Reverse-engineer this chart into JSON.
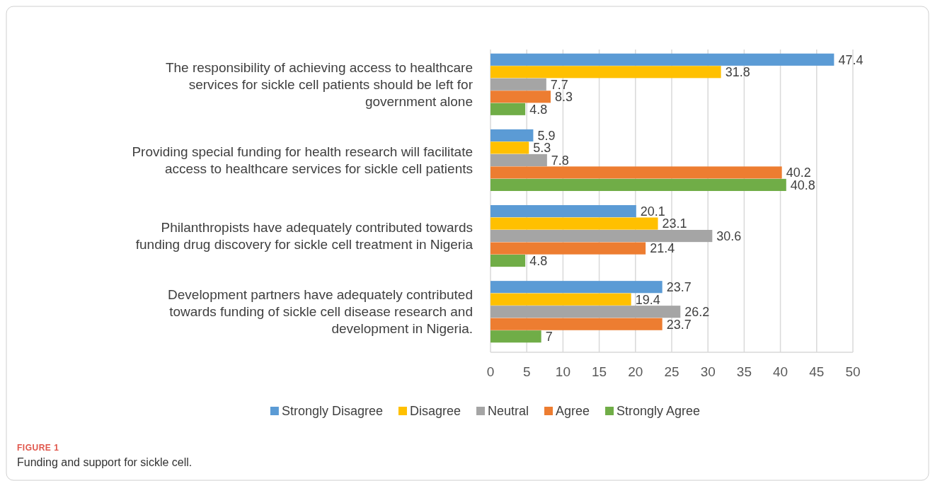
{
  "chart_data": {
    "type": "bar",
    "orientation": "horizontal",
    "categories": [
      "The responsibility of achieving access to healthcare services for sickle cell patients should be left for government alone",
      "Providing special funding for health research will facilitate access to healthcare services for sickle cell patients",
      "Philanthropists have adequately contributed towards funding drug discovery for sickle cell treatment in Nigeria",
      "Development partners have adequately contributed towards funding of sickle cell disease research and development in Nigeria."
    ],
    "series": [
      {
        "name": "Strongly Disagree",
        "color": "#5b9bd5",
        "values": [
          47.4,
          5.9,
          20.1,
          23.7
        ]
      },
      {
        "name": "Disagree",
        "color": "#ffc000",
        "values": [
          31.8,
          5.3,
          23.1,
          19.4
        ]
      },
      {
        "name": "Neutral",
        "color": "#a5a5a5",
        "values": [
          7.7,
          7.8,
          30.6,
          26.2
        ]
      },
      {
        "name": "Agree",
        "color": "#ed7d31",
        "values": [
          8.3,
          40.2,
          21.4,
          23.7
        ]
      },
      {
        "name": "Strongly Agree",
        "color": "#70ad47",
        "values": [
          4.8,
          40.8,
          4.8,
          7
        ]
      }
    ],
    "xlim": [
      0,
      50
    ],
    "xticks": [
      0,
      5,
      10,
      15,
      20,
      25,
      30,
      35,
      40,
      45,
      50
    ],
    "grid": "x",
    "legend": "bottom",
    "data_labels": true,
    "annotations": [
      "FIGURE 1",
      "Funding and support for sickle cell."
    ]
  }
}
